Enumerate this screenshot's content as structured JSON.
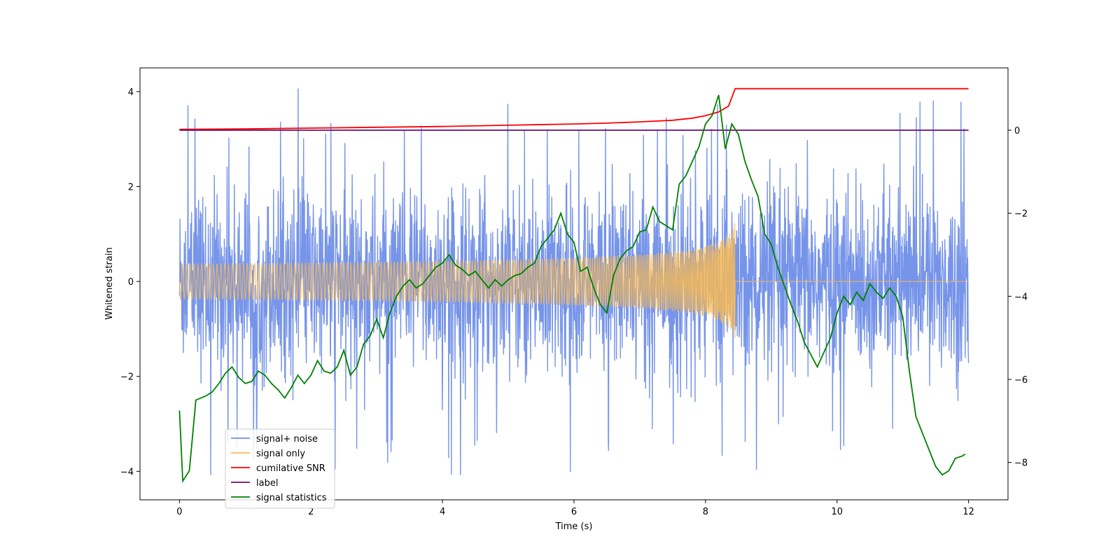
{
  "chart_data": {
    "type": "line",
    "xlabel": "Time (s)",
    "ylabel": "Whitened strain",
    "xlim": [
      -0.6,
      12.6
    ],
    "ylim": [
      -4.6,
      4.5
    ],
    "y2lim": [
      -8.9,
      1.5
    ],
    "xticks": [
      0,
      2,
      4,
      6,
      8,
      10,
      12
    ],
    "yticks": [
      -4,
      -2,
      0,
      2,
      4
    ],
    "y2ticks": [
      -8,
      -6,
      -4,
      -2,
      0
    ],
    "grid": false,
    "legend_position": "lower-left",
    "series": [
      {
        "name": "signal+ noise",
        "axis": "left",
        "color": "#6f8ee8",
        "style": "noise band, peaks up to about 4.1 and down to about -4.2",
        "x_range": [
          0,
          12
        ],
        "amplitude_envelope": 2.5
      },
      {
        "name": "signal only",
        "axis": "left",
        "color": "#f5b857",
        "style": "chirp growing toward merger",
        "x_range": [
          0,
          12
        ],
        "merger_time": 8.45,
        "peak_amplitude": 1.4
      },
      {
        "name": "cumilative SNR",
        "axis": "right",
        "color": "#ff0000",
        "x": [
          0,
          1,
          2,
          3,
          4,
          5,
          6,
          6.5,
          7,
          7.5,
          7.8,
          8.0,
          8.2,
          8.35,
          8.45,
          9,
          10,
          11,
          12
        ],
        "y": [
          0.02,
          0.03,
          0.05,
          0.07,
          0.09,
          0.12,
          0.15,
          0.17,
          0.2,
          0.24,
          0.29,
          0.35,
          0.44,
          0.58,
          1.0,
          1.0,
          1.0,
          1.0,
          1.0
        ]
      },
      {
        "name": "label",
        "axis": "right",
        "color": "#6a0d74",
        "x": [
          0,
          12
        ],
        "y": [
          0,
          0
        ]
      },
      {
        "name": "signal statistics",
        "axis": "right",
        "color": "#008000",
        "x": [
          0,
          0.05,
          0.15,
          0.25,
          0.4,
          0.5,
          0.6,
          0.7,
          0.8,
          0.9,
          1.0,
          1.1,
          1.2,
          1.3,
          1.4,
          1.5,
          1.6,
          1.7,
          1.8,
          1.9,
          2.0,
          2.1,
          2.2,
          2.3,
          2.4,
          2.5,
          2.6,
          2.7,
          2.8,
          2.9,
          3.0,
          3.1,
          3.2,
          3.3,
          3.4,
          3.5,
          3.6,
          3.7,
          3.8,
          3.9,
          4.0,
          4.1,
          4.2,
          4.3,
          4.4,
          4.5,
          4.6,
          4.7,
          4.8,
          4.9,
          5.0,
          5.1,
          5.2,
          5.3,
          5.4,
          5.5,
          5.6,
          5.7,
          5.8,
          5.9,
          6.0,
          6.1,
          6.2,
          6.3,
          6.4,
          6.5,
          6.6,
          6.7,
          6.8,
          6.9,
          7.0,
          7.1,
          7.2,
          7.3,
          7.4,
          7.5,
          7.6,
          7.7,
          7.8,
          7.9,
          8.0,
          8.1,
          8.2,
          8.3,
          8.4,
          8.5,
          8.6,
          8.7,
          8.8,
          8.9,
          9.0,
          9.1,
          9.2,
          9.3,
          9.4,
          9.5,
          9.6,
          9.7,
          9.8,
          9.9,
          10.0,
          10.1,
          10.2,
          10.3,
          10.4,
          10.5,
          10.6,
          10.7,
          10.8,
          10.9,
          11.0,
          11.1,
          11.2,
          11.3,
          11.4,
          11.5,
          11.6,
          11.7,
          11.8,
          11.9,
          11.95
        ],
        "y": [
          -6.75,
          -8.45,
          -8.2,
          -6.5,
          -6.4,
          -6.3,
          -6.1,
          -5.85,
          -5.7,
          -5.95,
          -6.1,
          -6.05,
          -5.8,
          -5.9,
          -6.1,
          -6.25,
          -6.45,
          -6.2,
          -5.9,
          -6.1,
          -5.9,
          -5.55,
          -5.8,
          -5.85,
          -5.7,
          -5.3,
          -5.9,
          -5.7,
          -5.15,
          -4.95,
          -4.55,
          -5.0,
          -4.4,
          -4.0,
          -3.75,
          -3.6,
          -3.8,
          -3.7,
          -3.5,
          -3.3,
          -3.2,
          -3.0,
          -3.25,
          -3.35,
          -3.5,
          -3.4,
          -3.6,
          -3.8,
          -3.6,
          -3.75,
          -3.6,
          -3.5,
          -3.45,
          -3.3,
          -3.2,
          -2.8,
          -2.6,
          -2.4,
          -2.0,
          -2.5,
          -2.7,
          -3.4,
          -3.3,
          -3.8,
          -4.2,
          -4.4,
          -3.5,
          -3.1,
          -2.9,
          -2.8,
          -2.45,
          -2.4,
          -1.85,
          -2.2,
          -2.3,
          -2.4,
          -1.3,
          -1.1,
          -0.75,
          -0.4,
          0.15,
          0.35,
          0.85,
          -0.45,
          0.15,
          -0.1,
          -0.75,
          -1.2,
          -1.6,
          -2.5,
          -2.75,
          -3.3,
          -3.75,
          -4.2,
          -4.6,
          -5.1,
          -5.4,
          -5.7,
          -5.35,
          -5.0,
          -4.4,
          -4.0,
          -4.2,
          -3.9,
          -4.1,
          -3.7,
          -3.9,
          -4.05,
          -3.8,
          -4.0,
          -4.5,
          -5.8,
          -6.9,
          -7.3,
          -7.7,
          -8.1,
          -8.3,
          -8.2,
          -7.9,
          -7.85,
          -7.8
        ]
      }
    ]
  }
}
